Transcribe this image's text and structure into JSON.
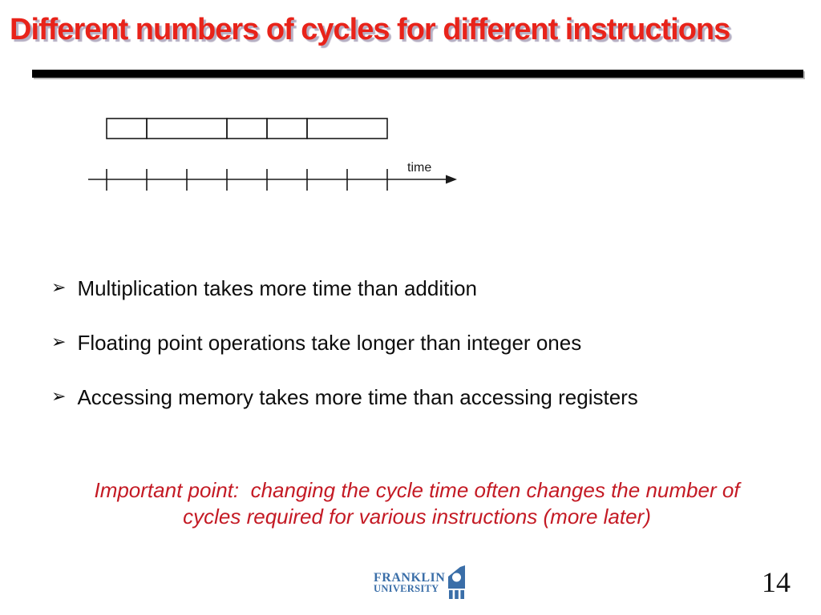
{
  "slide": {
    "title": "Different numbers of cycles for different instructions",
    "page_number": "14"
  },
  "diagram": {
    "time_label": "time",
    "cells_in_cycle_units": [
      1,
      2,
      1,
      1,
      2
    ],
    "tick_count": 8
  },
  "bullets": [
    {
      "marker": "➢",
      "text": "Multiplication takes more time than addition"
    },
    {
      "marker": "➢",
      "text": "Floating point operations take longer than integer ones"
    },
    {
      "marker": "➢",
      "text": "Accessing memory takes more time than accessing registers"
    }
  ],
  "note": {
    "line1": "Important point:  changing the cycle time often changes the number of",
    "line2": "cycles required for various instructions (more later)"
  },
  "footer": {
    "logo_line1": "FRANKLIN",
    "logo_line2": "UNIVERSITY"
  },
  "colors": {
    "title_red": "#e8231a",
    "note_red": "#c41a24",
    "logo_blue": "#3a6ea8",
    "rule_black": "#000000"
  }
}
